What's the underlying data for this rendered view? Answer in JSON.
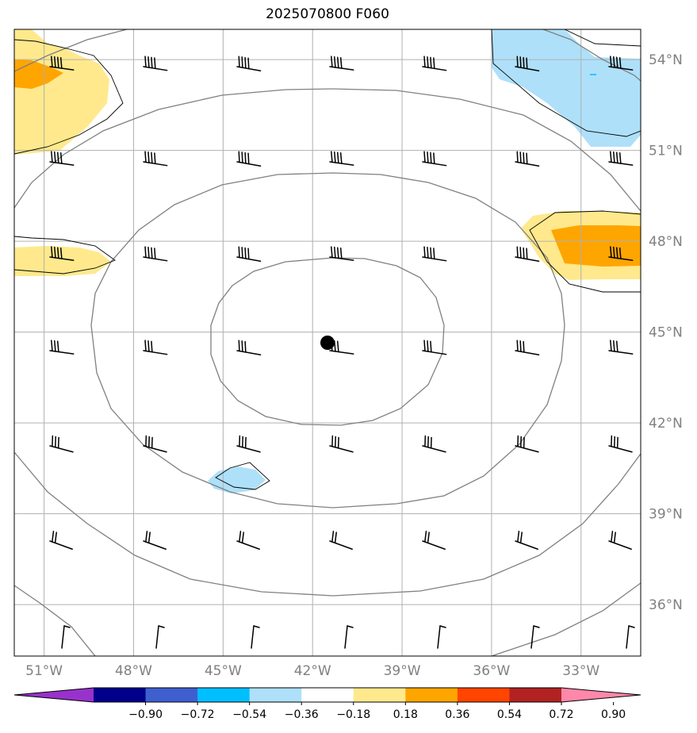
{
  "title": "2025070800 F060",
  "map": {
    "lon_range": [
      -52.0,
      -31.0
    ],
    "lat_range": [
      34.3,
      55.0
    ],
    "gridlines": true,
    "lon_ticks": [
      {
        "value": -51,
        "label": "51°W"
      },
      {
        "value": -48,
        "label": "48°W"
      },
      {
        "value": -45,
        "label": "45°W"
      },
      {
        "value": -42,
        "label": "42°W"
      },
      {
        "value": -39,
        "label": "39°W"
      },
      {
        "value": -36,
        "label": "36°W"
      },
      {
        "value": -33,
        "label": "33°W"
      }
    ],
    "lat_ticks": [
      {
        "value": 54,
        "label": "54°N"
      },
      {
        "value": 51,
        "label": "51°N"
      },
      {
        "value": 48,
        "label": "48°N"
      },
      {
        "value": 45,
        "label": "45°N"
      },
      {
        "value": 42,
        "label": "42°N"
      },
      {
        "value": 39,
        "label": "39°N"
      },
      {
        "value": 36,
        "label": "36°N"
      }
    ],
    "center_marker": {
      "lon": -41.6,
      "lat": 44.4,
      "color": "#000000"
    },
    "isoline_color": "#808080",
    "contour_color": "#000000"
  },
  "colorbar": {
    "colors": [
      "#9932cc",
      "#00008b",
      "#3f5fcf",
      "#00bfff",
      "#aee0fa",
      "#ffffff",
      "#ffe98c",
      "#ffa500",
      "#ff4500",
      "#b22222",
      "#ff88aa"
    ],
    "labels": [
      "−0.90",
      "−0.72",
      "−0.54",
      "−0.36",
      "−0.18",
      "0.18",
      "0.36",
      "0.54",
      "0.72",
      "0.90"
    ]
  }
}
